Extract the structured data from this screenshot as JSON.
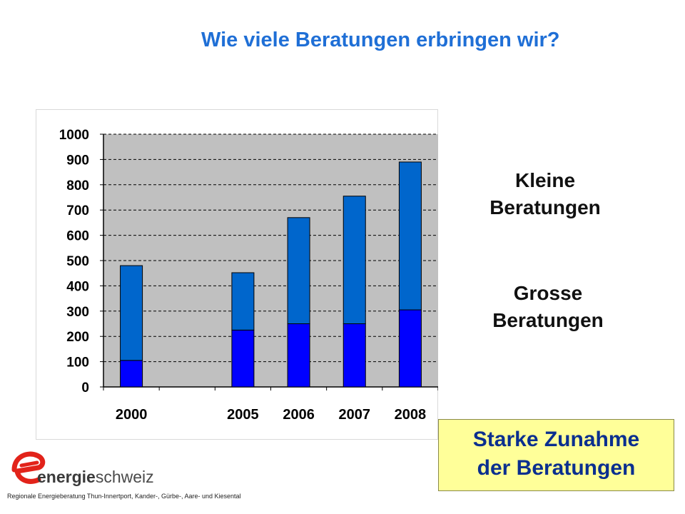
{
  "title": "Wie viele Beratungen erbringen wir?",
  "chart_data": {
    "type": "bar",
    "stacked": true,
    "categories": [
      "2000",
      "",
      "2005",
      "2006",
      "2007",
      "2008"
    ],
    "series": [
      {
        "name": "Grosse Beratungen",
        "values": [
          105,
          null,
          225,
          250,
          250,
          305
        ],
        "color": "#0000ff"
      },
      {
        "name": "Kleine Beratungen",
        "values": [
          375,
          null,
          227,
          420,
          505,
          585
        ],
        "color": "#0066cc"
      }
    ],
    "ylim": [
      0,
      1000
    ],
    "yticks": [
      "0",
      "100",
      "200",
      "300",
      "400",
      "500",
      "600",
      "700",
      "800",
      "900",
      "1000"
    ],
    "grid": true,
    "plot_background": "#c0c0c0"
  },
  "labels": {
    "kleine": [
      "Kleine",
      "Beratungen"
    ],
    "grosse": [
      "Grosse",
      "Beratungen"
    ]
  },
  "callout": [
    "Starke Zunahme",
    "der Beratungen"
  ],
  "logo": {
    "brand_bold": "energie",
    "brand_rest": "schweiz",
    "icon": "energie-e-logo-icon",
    "color": "#e2231a"
  },
  "footer": "Regionale Energieberatung Thun-Innertport, Kander-, Gürbe-, Aare- und Kiesental"
}
